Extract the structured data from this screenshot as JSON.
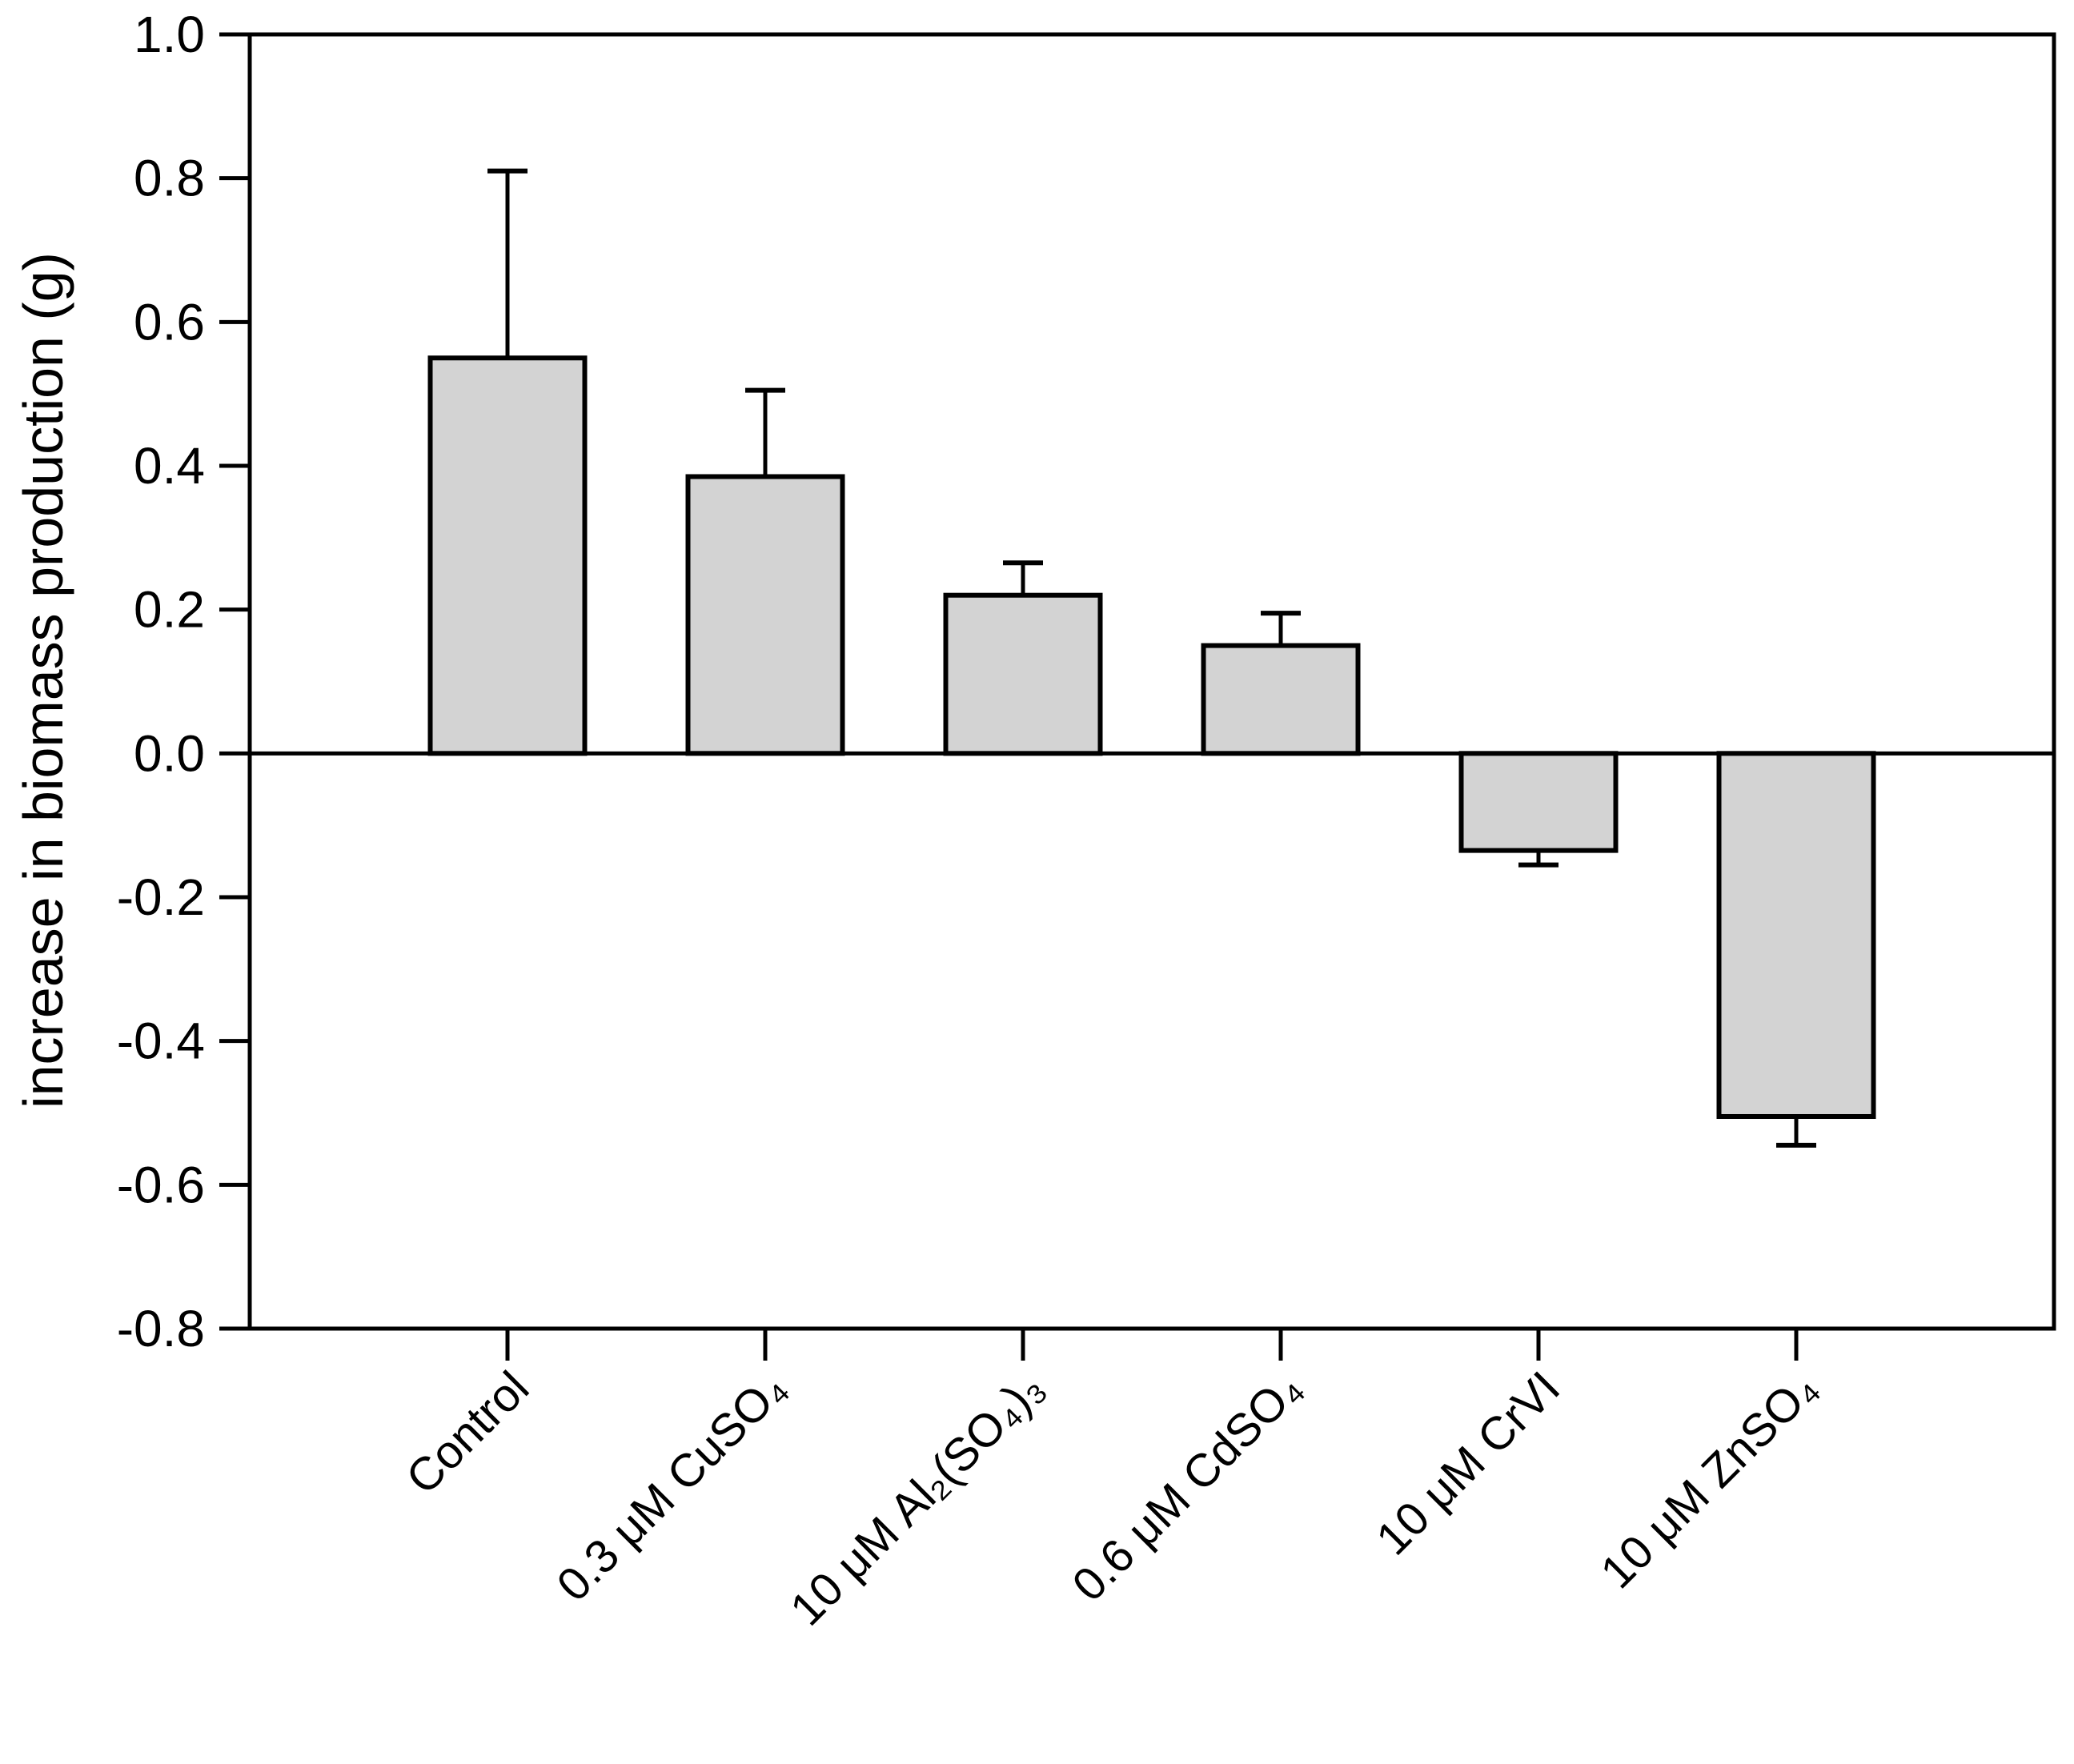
{
  "figure": {
    "background": "#ffffff",
    "bar_fill": "#d3d3d3",
    "bar_stroke": "#000000",
    "axis_color": "#000000"
  },
  "chart_data": {
    "type": "bar",
    "categories": [
      "Control",
      "0.3 μM CuSO₄",
      "10 μM Al₂(SO₄)₃",
      "0.6 μM CdSO₄",
      "10 μM CrVI",
      "10 μM ZnSO₄"
    ],
    "values": [
      0.55,
      0.385,
      0.22,
      0.15,
      -0.135,
      -0.505
    ],
    "error_bars": [
      0.26,
      0.12,
      0.045,
      0.045,
      0.02,
      0.04
    ],
    "error_direction": "away-from-zero",
    "title": "",
    "xlabel": "",
    "ylabel": "increase in biomass production (g)",
    "ylim": [
      -0.8,
      1.0
    ],
    "ytick_step": 0.2,
    "ytick_labels": [
      "1.0",
      "0.8",
      "0.6",
      "0.4",
      "0.2",
      "0.0",
      "-0.2",
      "-0.4",
      "-0.6",
      "-0.8"
    ],
    "grid": false,
    "legend": null,
    "zero_line": true
  }
}
